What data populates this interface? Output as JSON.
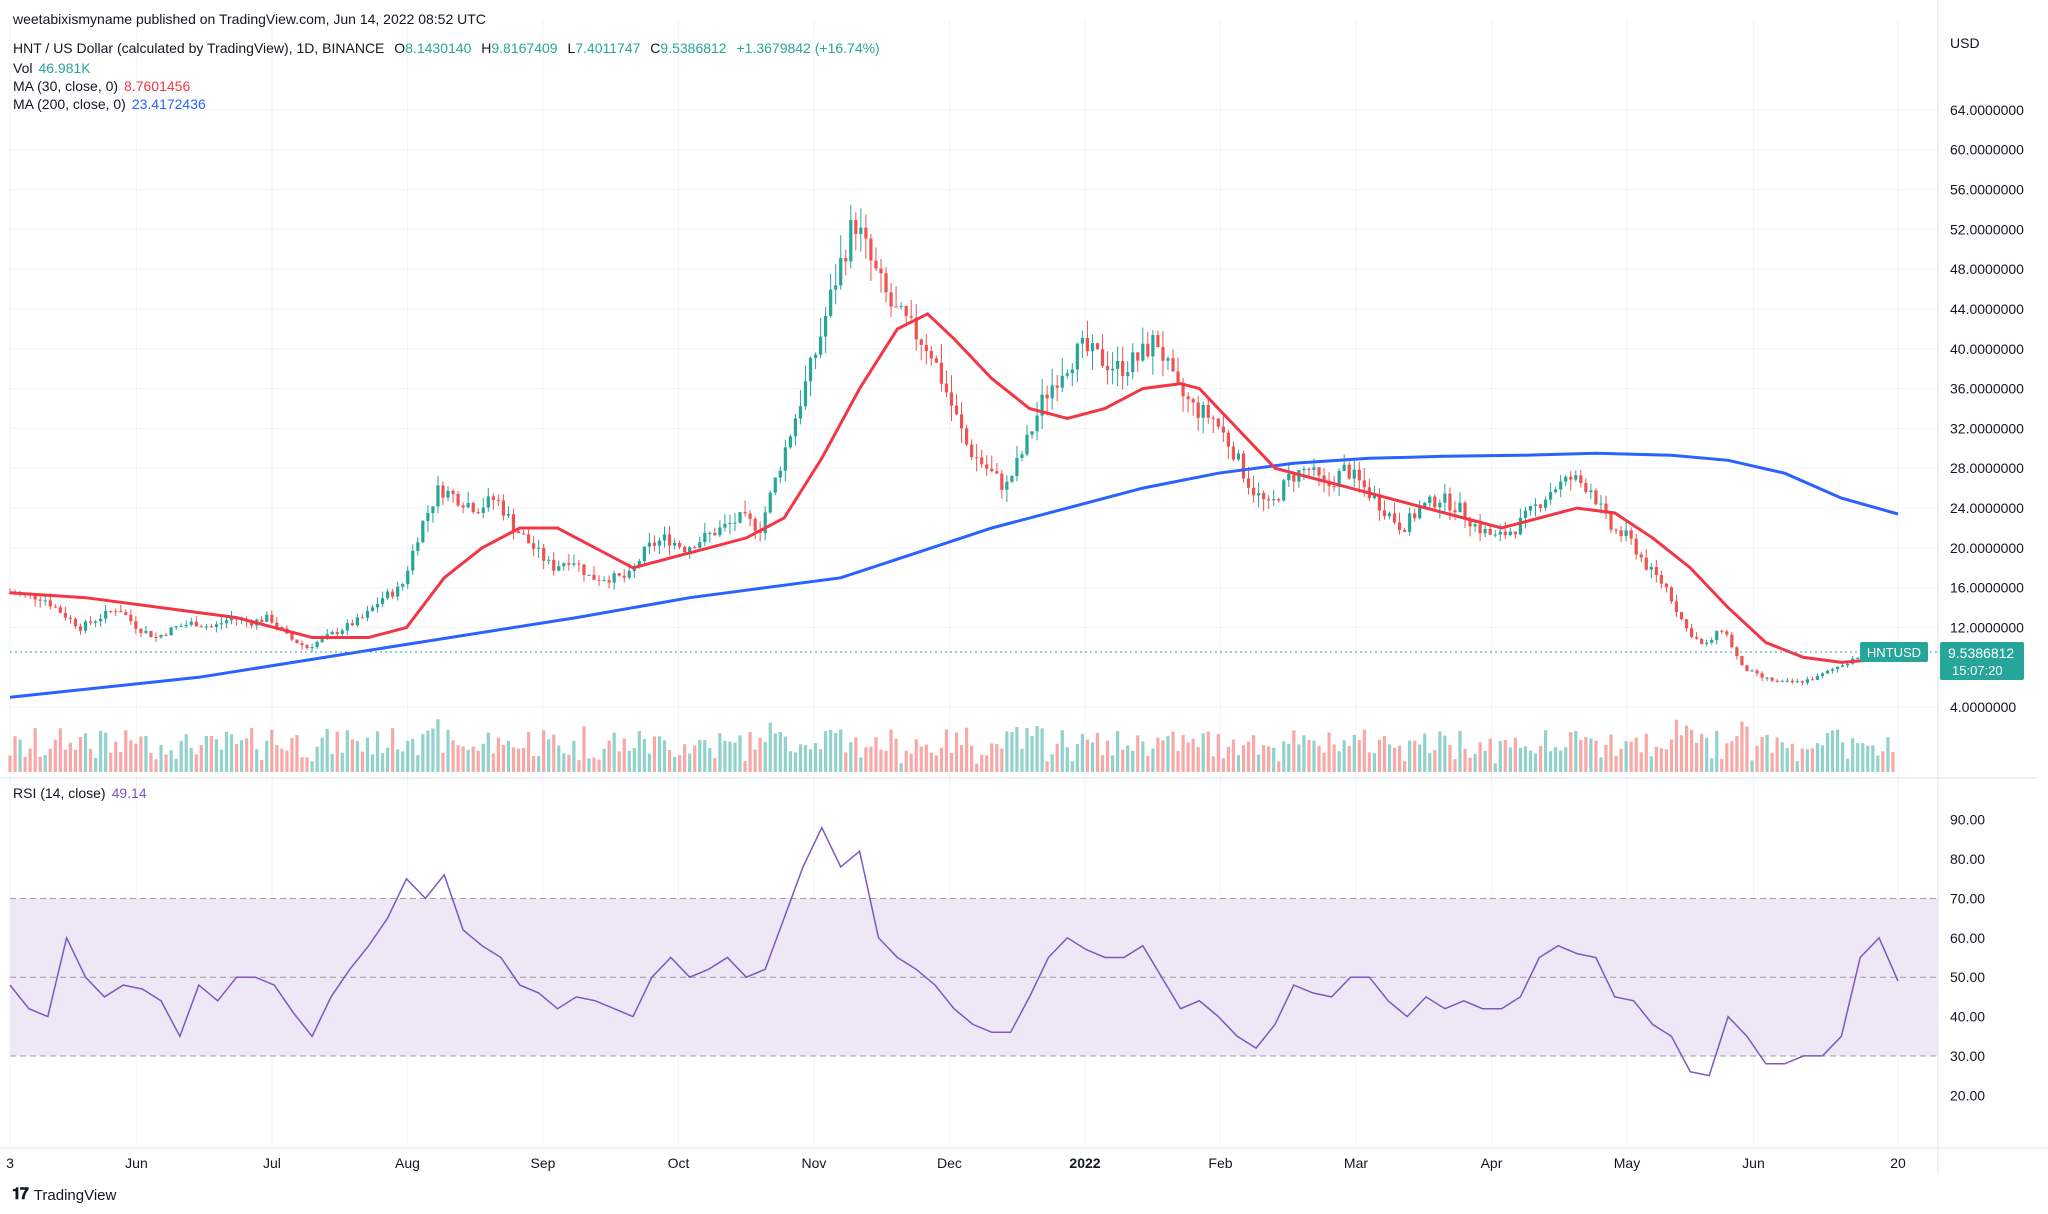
{
  "publisher_line": "weetabixismyname published on TradingView.com, Jun 14, 2022 08:52 UTC",
  "header": {
    "symbol": "HNT / US Dollar (calculated by TradingView), 1D, BINANCE",
    "o_label": "O",
    "o_value": "8.1430140",
    "h_label": "H",
    "h_value": "9.8167409",
    "l_label": "L",
    "l_value": "7.4011747",
    "c_label": "C",
    "c_value": "9.5386812",
    "change": "+1.3679842 (+16.74%)",
    "vol_label": "Vol",
    "vol_value": "46.981K",
    "ma30_label": "MA (30, close, 0)",
    "ma30_value": "8.7601456",
    "ma200_label": "MA (200, close, 0)",
    "ma200_value": "23.4172436",
    "rsi_label": "RSI (14, close)",
    "rsi_value": "49.14"
  },
  "colors": {
    "up": "#26a69a",
    "down": "#ef5350",
    "ma30": "#f23645",
    "ma200": "#2962ff",
    "rsi": "#7e57c2",
    "rsi_band": "#ede7f6",
    "grid": "#f0f3fa"
  },
  "axis": {
    "currency": "USD",
    "price_ticks": [
      "64.0000000",
      "60.0000000",
      "56.0000000",
      "52.0000000",
      "48.0000000",
      "44.0000000",
      "40.0000000",
      "36.0000000",
      "32.0000000",
      "28.0000000",
      "24.0000000",
      "20.0000000",
      "16.0000000",
      "12.0000000",
      "4.0000000"
    ],
    "rsi_ticks": [
      "90.00",
      "80.00",
      "70.00",
      "60.00",
      "50.00",
      "40.00",
      "30.00",
      "20.00"
    ],
    "time_labels": [
      "3",
      "Jun",
      "Jul",
      "Aug",
      "Sep",
      "Oct",
      "Nov",
      "Dec",
      "2022",
      "Feb",
      "Mar",
      "Apr",
      "May",
      "Jun",
      "20"
    ]
  },
  "last_price": {
    "symbol": "HNTUSD",
    "price": "9.5386812",
    "countdown": "15:07:20"
  },
  "logo_text": "TradingView",
  "chart_data": {
    "type": "candlestick",
    "title": "HNT / US Dollar (calculated by TradingView), 1D, BINANCE",
    "ylabel": "USD",
    "price_range": [
      0,
      68
    ],
    "rsi_range": [
      15,
      95
    ],
    "rsi_levels": [
      70,
      50,
      30
    ],
    "x_range_days": [
      0,
      389
    ],
    "price_path": [
      [
        0,
        15.5
      ],
      [
        10,
        15
      ],
      [
        20,
        12
      ],
      [
        25,
        13
      ],
      [
        30,
        14
      ],
      [
        35,
        12
      ],
      [
        40,
        11
      ],
      [
        45,
        12
      ],
      [
        50,
        12.5
      ],
      [
        55,
        12
      ],
      [
        60,
        13
      ],
      [
        65,
        12.5
      ],
      [
        70,
        13
      ],
      [
        75,
        11
      ],
      [
        80,
        10
      ],
      [
        85,
        11
      ],
      [
        90,
        12
      ],
      [
        95,
        13
      ],
      [
        100,
        15
      ],
      [
        105,
        16
      ],
      [
        110,
        22
      ],
      [
        115,
        26
      ],
      [
        120,
        25
      ],
      [
        125,
        24
      ],
      [
        130,
        25
      ],
      [
        135,
        22
      ],
      [
        140,
        20
      ],
      [
        145,
        18
      ],
      [
        150,
        19
      ],
      [
        155,
        17
      ],
      [
        160,
        17
      ],
      [
        165,
        17
      ],
      [
        170,
        20
      ],
      [
        175,
        21
      ],
      [
        180,
        20
      ],
      [
        185,
        21
      ],
      [
        190,
        22
      ],
      [
        195,
        23
      ],
      [
        200,
        22
      ],
      [
        205,
        28
      ],
      [
        210,
        34
      ],
      [
        215,
        40
      ],
      [
        220,
        47
      ],
      [
        225,
        53
      ],
      [
        230,
        48
      ],
      [
        235,
        44
      ],
      [
        240,
        42
      ],
      [
        245,
        40
      ],
      [
        250,
        35
      ],
      [
        255,
        30
      ],
      [
        260,
        28
      ],
      [
        265,
        26
      ],
      [
        270,
        30
      ],
      [
        275,
        35
      ],
      [
        280,
        38
      ],
      [
        285,
        40
      ],
      [
        290,
        39
      ],
      [
        295,
        38
      ],
      [
        300,
        39
      ],
      [
        305,
        41
      ],
      [
        310,
        36
      ],
      [
        315,
        34
      ],
      [
        320,
        33
      ],
      [
        325,
        30
      ],
      [
        330,
        26
      ],
      [
        335,
        24
      ],
      [
        340,
        27
      ],
      [
        345,
        28
      ],
      [
        350,
        26
      ],
      [
        355,
        28
      ],
      [
        360,
        26
      ],
      [
        365,
        24
      ],
      [
        370,
        22
      ],
      [
        375,
        24
      ],
      [
        380,
        25
      ],
      [
        385,
        24
      ],
      [
        390,
        22
      ],
      [
        395,
        21
      ],
      [
        400,
        22
      ],
      [
        405,
        24
      ],
      [
        410,
        26
      ],
      [
        415,
        27
      ],
      [
        420,
        26
      ],
      [
        425,
        22
      ],
      [
        430,
        21
      ],
      [
        435,
        18
      ],
      [
        440,
        16
      ],
      [
        445,
        12
      ],
      [
        450,
        10
      ],
      [
        455,
        12
      ],
      [
        460,
        8
      ],
      [
        465,
        7
      ],
      [
        470,
        6.5
      ],
      [
        475,
        6.5
      ],
      [
        480,
        7
      ],
      [
        485,
        8
      ],
      [
        490,
        9
      ],
      [
        495,
        10
      ],
      [
        500,
        9.5
      ]
    ],
    "ma30_path": [
      [
        0,
        15.5
      ],
      [
        20,
        15
      ],
      [
        40,
        14
      ],
      [
        60,
        13
      ],
      [
        80,
        11
      ],
      [
        95,
        11
      ],
      [
        105,
        12
      ],
      [
        115,
        17
      ],
      [
        125,
        20
      ],
      [
        135,
        22
      ],
      [
        145,
        22
      ],
      [
        155,
        20
      ],
      [
        165,
        18
      ],
      [
        175,
        19
      ],
      [
        185,
        20
      ],
      [
        195,
        21
      ],
      [
        205,
        23
      ],
      [
        215,
        29
      ],
      [
        225,
        36
      ],
      [
        235,
        42
      ],
      [
        243,
        43.5
      ],
      [
        250,
        41
      ],
      [
        260,
        37
      ],
      [
        270,
        34
      ],
      [
        280,
        33
      ],
      [
        290,
        34
      ],
      [
        300,
        36
      ],
      [
        310,
        36.5
      ],
      [
        315,
        36
      ],
      [
        325,
        32
      ],
      [
        335,
        28
      ],
      [
        345,
        27
      ],
      [
        355,
        26
      ],
      [
        365,
        25
      ],
      [
        375,
        24
      ],
      [
        385,
        23
      ],
      [
        395,
        22
      ],
      [
        405,
        23
      ],
      [
        415,
        24
      ],
      [
        425,
        23.5
      ],
      [
        435,
        21
      ],
      [
        445,
        18
      ],
      [
        455,
        14
      ],
      [
        465,
        10.5
      ],
      [
        475,
        9
      ],
      [
        485,
        8.5
      ],
      [
        495,
        8.8
      ],
      [
        500,
        8.76
      ]
    ],
    "ma200_path": [
      [
        0,
        5
      ],
      [
        50,
        7
      ],
      [
        100,
        10
      ],
      [
        150,
        13
      ],
      [
        180,
        15
      ],
      [
        200,
        16
      ],
      [
        220,
        17
      ],
      [
        240,
        19.5
      ],
      [
        260,
        22
      ],
      [
        280,
        24
      ],
      [
        300,
        26
      ],
      [
        320,
        27.5
      ],
      [
        340,
        28.5
      ],
      [
        360,
        29
      ],
      [
        380,
        29.2
      ],
      [
        400,
        29.3
      ],
      [
        420,
        29.5
      ],
      [
        440,
        29.3
      ],
      [
        455,
        28.8
      ],
      [
        470,
        27.5
      ],
      [
        485,
        25
      ],
      [
        500,
        23.4
      ]
    ],
    "rsi_path": [
      [
        0,
        48
      ],
      [
        5,
        42
      ],
      [
        10,
        40
      ],
      [
        15,
        60
      ],
      [
        20,
        50
      ],
      [
        25,
        45
      ],
      [
        30,
        48
      ],
      [
        35,
        47
      ],
      [
        40,
        44
      ],
      [
        45,
        35
      ],
      [
        50,
        48
      ],
      [
        55,
        44
      ],
      [
        60,
        50
      ],
      [
        65,
        50
      ],
      [
        70,
        48
      ],
      [
        75,
        41
      ],
      [
        80,
        35
      ],
      [
        85,
        45
      ],
      [
        90,
        52
      ],
      [
        95,
        58
      ],
      [
        100,
        65
      ],
      [
        105,
        75
      ],
      [
        110,
        70
      ],
      [
        115,
        76
      ],
      [
        120,
        62
      ],
      [
        125,
        58
      ],
      [
        130,
        55
      ],
      [
        135,
        48
      ],
      [
        140,
        46
      ],
      [
        145,
        42
      ],
      [
        150,
        45
      ],
      [
        155,
        44
      ],
      [
        160,
        42
      ],
      [
        165,
        40
      ],
      [
        170,
        50
      ],
      [
        175,
        55
      ],
      [
        180,
        50
      ],
      [
        185,
        52
      ],
      [
        190,
        55
      ],
      [
        195,
        50
      ],
      [
        200,
        52
      ],
      [
        205,
        65
      ],
      [
        210,
        78
      ],
      [
        215,
        88
      ],
      [
        220,
        78
      ],
      [
        225,
        82
      ],
      [
        230,
        60
      ],
      [
        235,
        55
      ],
      [
        240,
        52
      ],
      [
        245,
        48
      ],
      [
        250,
        42
      ],
      [
        255,
        38
      ],
      [
        260,
        36
      ],
      [
        265,
        36
      ],
      [
        270,
        45
      ],
      [
        275,
        55
      ],
      [
        280,
        60
      ],
      [
        285,
        57
      ],
      [
        290,
        55
      ],
      [
        295,
        55
      ],
      [
        300,
        58
      ],
      [
        305,
        50
      ],
      [
        310,
        42
      ],
      [
        315,
        44
      ],
      [
        320,
        40
      ],
      [
        325,
        35
      ],
      [
        330,
        32
      ],
      [
        335,
        38
      ],
      [
        340,
        48
      ],
      [
        345,
        46
      ],
      [
        350,
        45
      ],
      [
        355,
        50
      ],
      [
        360,
        50
      ],
      [
        365,
        44
      ],
      [
        370,
        40
      ],
      [
        375,
        45
      ],
      [
        380,
        42
      ],
      [
        385,
        44
      ],
      [
        390,
        42
      ],
      [
        395,
        42
      ],
      [
        400,
        45
      ],
      [
        405,
        55
      ],
      [
        410,
        58
      ],
      [
        415,
        56
      ],
      [
        420,
        55
      ],
      [
        425,
        45
      ],
      [
        430,
        44
      ],
      [
        435,
        38
      ],
      [
        440,
        35
      ],
      [
        445,
        26
      ],
      [
        450,
        25
      ],
      [
        455,
        40
      ],
      [
        460,
        35
      ],
      [
        465,
        28
      ],
      [
        470,
        28
      ],
      [
        475,
        30
      ],
      [
        480,
        30
      ],
      [
        485,
        35
      ],
      [
        490,
        55
      ],
      [
        495,
        60
      ],
      [
        500,
        49
      ]
    ],
    "last_close": 9.5386812,
    "last_rsi": 49.14
  }
}
